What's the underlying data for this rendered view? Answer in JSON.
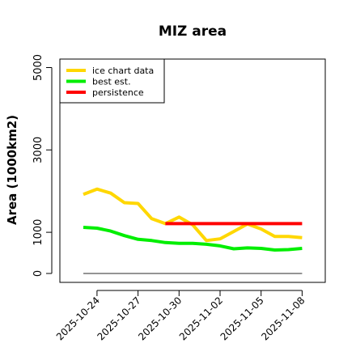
{
  "chart_data": {
    "type": "line",
    "title": "MIZ area",
    "ylabel": "Area (1000km2)",
    "xlabel": "",
    "x": [
      "2025-10-23",
      "2025-10-24",
      "2025-10-25",
      "2025-10-26",
      "2025-10-27",
      "2025-10-28",
      "2025-10-29",
      "2025-10-30",
      "2025-10-31",
      "2025-11-01",
      "2025-11-02",
      "2025-11-03",
      "2025-11-04",
      "2025-11-05",
      "2025-11-06",
      "2025-11-07",
      "2025-11-08"
    ],
    "xticks": [
      "2025-10-24",
      "2025-10-27",
      "2025-10-30",
      "2025-11-02",
      "2025-11-05",
      "2025-11-08"
    ],
    "yticks": [
      0,
      1000,
      3000,
      5000
    ],
    "ylim": [
      -150,
      5350
    ],
    "series": [
      {
        "name": "ice chart data",
        "color": "#FFD700",
        "values": [
          1920,
          2050,
          1950,
          1720,
          1700,
          1330,
          1210,
          1370,
          1180,
          800,
          840,
          1020,
          1200,
          1080,
          900,
          900,
          870
        ]
      },
      {
        "name": "best est.",
        "color": "#00EE00",
        "values": [
          1120,
          1100,
          1030,
          920,
          830,
          800,
          750,
          730,
          730,
          710,
          670,
          600,
          620,
          610,
          570,
          580,
          610
        ]
      },
      {
        "name": "persistence",
        "color": "#FF0000",
        "x": [
          "2025-10-29",
          "2025-11-08"
        ],
        "values": [
          1210,
          1210
        ]
      }
    ],
    "baseline": {
      "value": 0,
      "x": [
        "2025-10-23",
        "2025-11-08"
      ],
      "color": "#555555"
    },
    "grid": false,
    "legend": "top-left"
  }
}
